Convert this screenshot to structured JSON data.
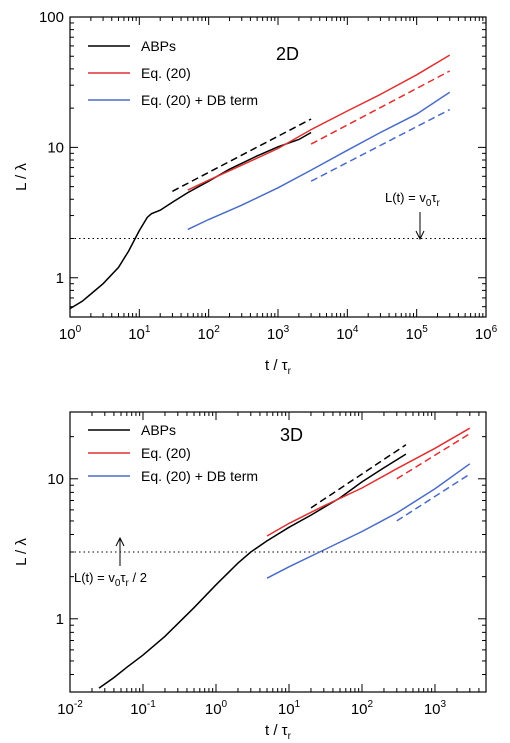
{
  "chart_data": [
    {
      "type": "line",
      "panel_label": "2D",
      "xscale": "log",
      "yscale": "log",
      "xlim": [
        1,
        1000000
      ],
      "ylim": [
        0.5,
        100
      ],
      "x_ticks": [
        {
          "base": "10",
          "exp": "0"
        },
        {
          "base": "10",
          "exp": "1"
        },
        {
          "base": "10",
          "exp": "2"
        },
        {
          "base": "10",
          "exp": "3"
        },
        {
          "base": "10",
          "exp": "4"
        },
        {
          "base": "10",
          "exp": "5"
        },
        {
          "base": "10",
          "exp": "6"
        }
      ],
      "y_ticks": [
        "1",
        "10",
        "100"
      ],
      "xlabel": "t / τr",
      "ylabel": "L / λ",
      "legend": [
        "ABPs",
        "Eq. (20)",
        "Eq. (20) + DB term"
      ],
      "annotation": {
        "text": "L(t) = v0τr",
        "line_y": 2.0
      },
      "series": [
        {
          "name": "ABPs",
          "color": "#000000",
          "style": "solid",
          "x": [
            1,
            1.5,
            2,
            3,
            5,
            7,
            10,
            13,
            15,
            20,
            30,
            50,
            100,
            200,
            500,
            1000,
            2000,
            3000
          ],
          "y": [
            0.58,
            0.66,
            0.75,
            0.9,
            1.2,
            1.6,
            2.3,
            2.9,
            3.1,
            3.3,
            3.8,
            4.5,
            5.5,
            6.8,
            8.6,
            10.1,
            11.5,
            13.0
          ]
        },
        {
          "name": "Eq. (20)",
          "color": "#e03030",
          "style": "solid",
          "x": [
            50,
            100,
            300,
            1000,
            3000,
            10000,
            30000,
            100000,
            300000
          ],
          "y": [
            4.7,
            5.6,
            7.3,
            9.8,
            13.7,
            19.0,
            25.5,
            36.0,
            51.0
          ]
        },
        {
          "name": "Eq. (20) + DB term",
          "color": "#4a6cc8",
          "style": "solid",
          "x": [
            50,
            100,
            300,
            1000,
            3000,
            10000,
            30000,
            100000,
            300000
          ],
          "y": [
            2.35,
            2.8,
            3.6,
            4.9,
            6.7,
            9.5,
            13.0,
            18.0,
            26.5
          ]
        },
        {
          "name": "",
          "color": "#000000",
          "style": "dashed",
          "x": [
            30,
            3000
          ],
          "y": [
            4.6,
            16.5
          ]
        },
        {
          "name": "",
          "color": "#e03030",
          "style": "dashed",
          "x": [
            3000,
            300000
          ],
          "y": [
            10.6,
            38.5
          ]
        },
        {
          "name": "",
          "color": "#4a6cc8",
          "style": "dashed",
          "x": [
            3000,
            300000
          ],
          "y": [
            5.5,
            19.5
          ]
        }
      ]
    },
    {
      "type": "line",
      "panel_label": "3D",
      "xscale": "log",
      "yscale": "log",
      "xlim": [
        0.01,
        5000
      ],
      "ylim": [
        0.3,
        30
      ],
      "x_ticks": [
        {
          "base": "10",
          "exp": "-2"
        },
        {
          "base": "10",
          "exp": "-1"
        },
        {
          "base": "10",
          "exp": "0"
        },
        {
          "base": "10",
          "exp": "1"
        },
        {
          "base": "10",
          "exp": "2"
        },
        {
          "base": "10",
          "exp": "3"
        }
      ],
      "y_ticks": [
        "1",
        "10"
      ],
      "xlabel": "t / τr",
      "ylabel": "L / λ",
      "legend": [
        "ABPs",
        "Eq. (20)",
        "Eq. (20) + DB term"
      ],
      "annotation": {
        "text": "L(t) = v0τr / 2",
        "line_y": 3.0
      },
      "series": [
        {
          "name": "ABPs",
          "color": "#000000",
          "style": "solid",
          "x": [
            0.025,
            0.04,
            0.06,
            0.1,
            0.2,
            0.5,
            1,
            2,
            3,
            5,
            10,
            20,
            50,
            100,
            200,
            400
          ],
          "y": [
            0.32,
            0.38,
            0.45,
            0.55,
            0.75,
            1.2,
            1.75,
            2.5,
            3.0,
            3.6,
            4.5,
            5.5,
            7.3,
            9.5,
            12.0,
            15.0
          ]
        },
        {
          "name": "Eq. (20)",
          "color": "#e03030",
          "style": "solid",
          "x": [
            5,
            10,
            30,
            100,
            300,
            1000,
            3000
          ],
          "y": [
            3.9,
            4.8,
            6.4,
            8.6,
            11.8,
            16.5,
            23.0
          ]
        },
        {
          "name": "Eq. (20) + DB term",
          "color": "#4a6cc8",
          "style": "solid",
          "x": [
            5,
            10,
            30,
            100,
            300,
            1000,
            3000
          ],
          "y": [
            1.95,
            2.35,
            3.1,
            4.2,
            5.7,
            8.5,
            12.8
          ]
        },
        {
          "name": "",
          "color": "#000000",
          "style": "dashed",
          "x": [
            20,
            400
          ],
          "y": [
            6.2,
            17.5
          ]
        },
        {
          "name": "",
          "color": "#e03030",
          "style": "dashed",
          "x": [
            300,
            3000
          ],
          "y": [
            10.0,
            21.0
          ]
        },
        {
          "name": "",
          "color": "#4a6cc8",
          "style": "dashed",
          "x": [
            300,
            3000
          ],
          "y": [
            5.0,
            10.8
          ]
        }
      ]
    }
  ]
}
